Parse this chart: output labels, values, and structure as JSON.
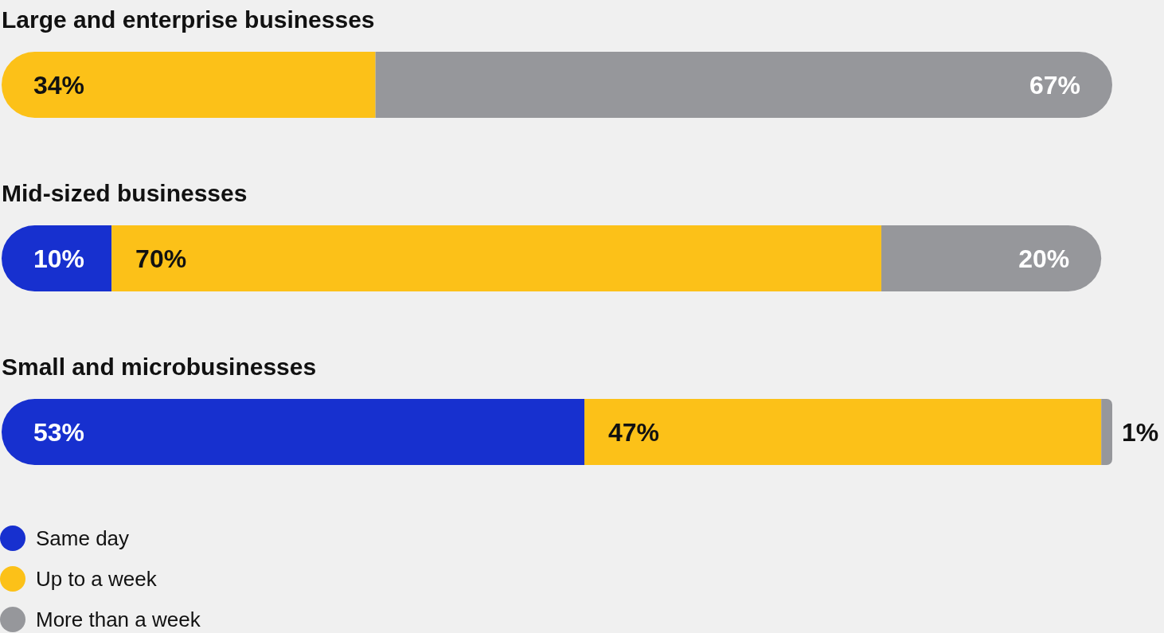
{
  "chart_data": {
    "type": "bar",
    "orientation": "horizontal",
    "stacked": true,
    "legend": "bottom left",
    "categories": [
      "Large and enterprise businesses",
      "Mid-sized businesses",
      "Small and microbusinesses"
    ],
    "series": [
      {
        "name": "Same day",
        "color": "#1730cf",
        "values": [
          null,
          10,
          53
        ],
        "value_labels": [
          null,
          "10%",
          "53%"
        ]
      },
      {
        "name": "Up to a week",
        "color": "#fcc118",
        "values": [
          34,
          70,
          47
        ],
        "value_labels": [
          "34%",
          "70%",
          "47%"
        ]
      },
      {
        "name": "More than a week",
        "color": "#96979b",
        "values": [
          67,
          20,
          1
        ],
        "value_labels": [
          "67%",
          "20%",
          "1%"
        ]
      }
    ]
  }
}
